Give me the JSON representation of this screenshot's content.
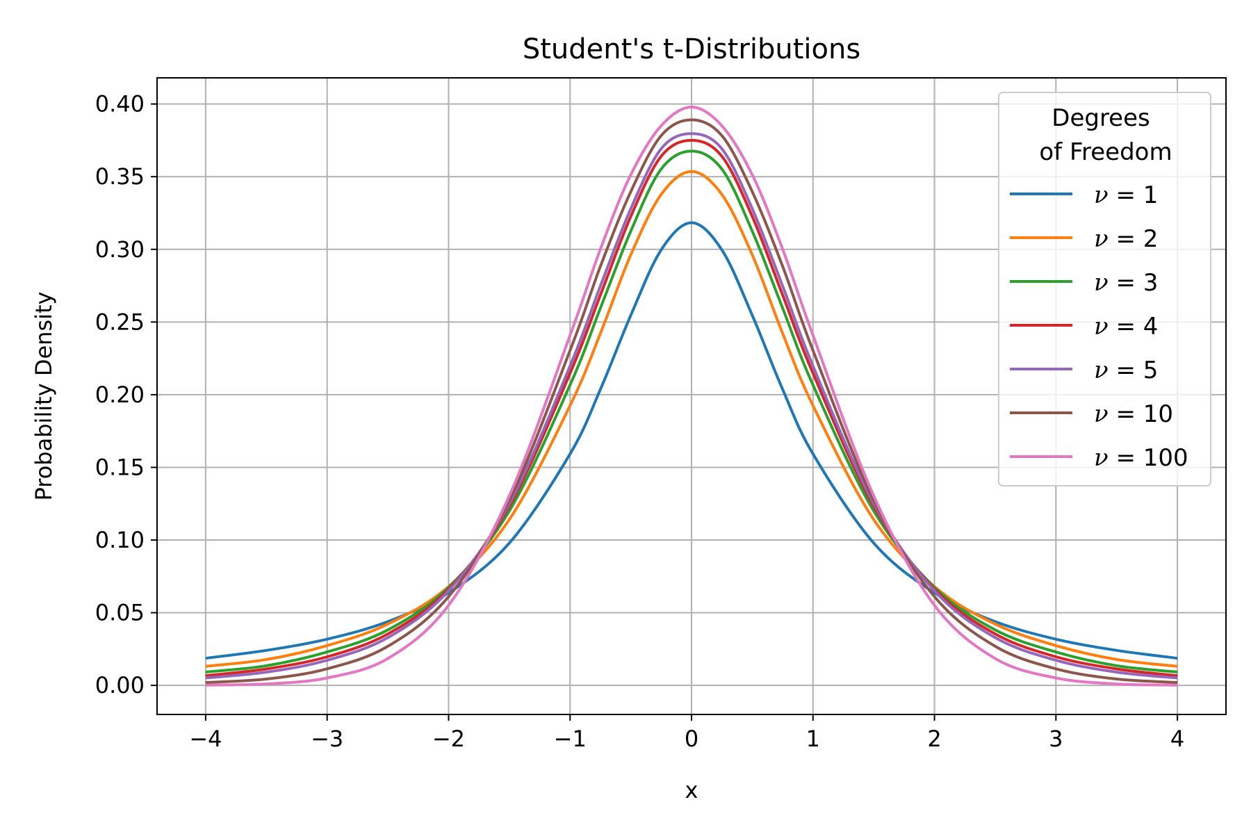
{
  "chart_data": {
    "type": "line",
    "title": "Student's t-Distributions",
    "xlabel": "x",
    "ylabel": "Probability Density",
    "xlim": [
      -4.4,
      4.4
    ],
    "ylim": [
      -0.02,
      0.418
    ],
    "x_ticks": [
      {
        "value": -4,
        "label": "−4"
      },
      {
        "value": -3,
        "label": "−3"
      },
      {
        "value": -2,
        "label": "−2"
      },
      {
        "value": -1,
        "label": "−1"
      },
      {
        "value": 0,
        "label": "0"
      },
      {
        "value": 1,
        "label": "1"
      },
      {
        "value": 2,
        "label": "2"
      },
      {
        "value": 3,
        "label": "3"
      },
      {
        "value": 4,
        "label": "4"
      }
    ],
    "y_ticks": [
      {
        "value": 0.0,
        "label": "0.00"
      },
      {
        "value": 0.05,
        "label": "0.05"
      },
      {
        "value": 0.1,
        "label": "0.10"
      },
      {
        "value": 0.15,
        "label": "0.15"
      },
      {
        "value": 0.2,
        "label": "0.20"
      },
      {
        "value": 0.25,
        "label": "0.25"
      },
      {
        "value": 0.3,
        "label": "0.30"
      },
      {
        "value": 0.35,
        "label": "0.35"
      },
      {
        "value": 0.4,
        "label": "0.40"
      }
    ],
    "grid": true,
    "legend": {
      "title_lines": [
        "Degrees",
        "of Freedom"
      ],
      "placement": "top-right"
    },
    "x": [
      -4,
      -3.5,
      -3,
      -2.5,
      -2,
      -1.5,
      -1,
      -0.75,
      -0.5,
      -0.25,
      0,
      0.25,
      0.5,
      0.75,
      1,
      1.5,
      2,
      2.5,
      3,
      3.5,
      4
    ],
    "series": [
      {
        "name": "1",
        "color": "#1f77b4",
        "values": [
          0.0187,
          0.0241,
          0.0318,
          0.0439,
          0.0637,
          0.0979,
          0.1592,
          0.2037,
          0.2546,
          0.2996,
          0.3183,
          0.2996,
          0.2546,
          0.2037,
          0.1592,
          0.0979,
          0.0637,
          0.0439,
          0.0318,
          0.0241,
          0.0187
        ]
      },
      {
        "name": "2",
        "color": "#ff7f0e",
        "values": [
          0.0131,
          0.0178,
          0.0274,
          0.0422,
          0.068,
          0.1141,
          0.1925,
          0.2422,
          0.2962,
          0.3377,
          0.3536,
          0.3377,
          0.2962,
          0.2422,
          0.1925,
          0.1141,
          0.068,
          0.0422,
          0.0274,
          0.0178,
          0.0131
        ]
      },
      {
        "name": "3",
        "color": "#2ca02c",
        "values": [
          0.0092,
          0.0135,
          0.023,
          0.0382,
          0.0675,
          0.12,
          0.2067,
          0.2596,
          0.3125,
          0.3552,
          0.3676,
          0.3552,
          0.3125,
          0.2596,
          0.2067,
          0.12,
          0.0675,
          0.0382,
          0.023,
          0.0135,
          0.0092
        ]
      },
      {
        "name": "4",
        "color": "#d62728",
        "values": [
          0.0067,
          0.0113,
          0.0197,
          0.0354,
          0.0663,
          0.1232,
          0.2147,
          0.2686,
          0.3226,
          0.364,
          0.375,
          0.364,
          0.3226,
          0.2686,
          0.2147,
          0.1232,
          0.0663,
          0.0354,
          0.0197,
          0.0113,
          0.0067
        ]
      },
      {
        "name": "5",
        "color": "#9467bd",
        "values": [
          0.0051,
          0.0091,
          0.0173,
          0.0329,
          0.0651,
          0.125,
          0.2197,
          0.2748,
          0.3279,
          0.3692,
          0.3796,
          0.3692,
          0.3279,
          0.2748,
          0.2197,
          0.125,
          0.0651,
          0.0329,
          0.0173,
          0.0091,
          0.0051
        ]
      },
      {
        "name": "10",
        "color": "#8c564b",
        "values": [
          0.002,
          0.0044,
          0.0114,
          0.0269,
          0.0611,
          0.1274,
          0.2304,
          0.2883,
          0.3397,
          0.3782,
          0.3891,
          0.3782,
          0.3397,
          0.2883,
          0.2304,
          0.1274,
          0.0611,
          0.0269,
          0.0114,
          0.0044,
          0.002
        ]
      },
      {
        "name": "100",
        "color": "#e377c2",
        "values": [
          0.0002,
          0.001,
          0.0051,
          0.0185,
          0.0551,
          0.1304,
          0.2408,
          0.3002,
          0.3513,
          0.385,
          0.3979,
          0.385,
          0.3513,
          0.3002,
          0.2408,
          0.1304,
          0.0551,
          0.0185,
          0.0051,
          0.001,
          0.0002
        ]
      }
    ]
  }
}
